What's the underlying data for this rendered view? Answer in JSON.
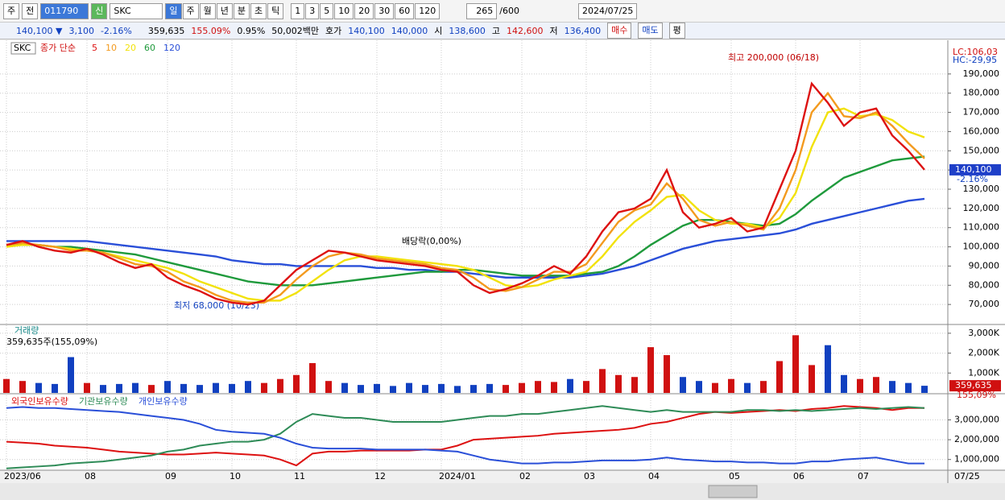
{
  "toolbar": {
    "market": "주",
    "prev": "전",
    "code": "011790",
    "name_badge": "신",
    "name": "SKC",
    "periods": [
      "일",
      "주",
      "월",
      "년",
      "분",
      "초",
      "틱"
    ],
    "intervals": [
      "1",
      "3",
      "5",
      "10",
      "20",
      "30",
      "60",
      "120"
    ],
    "count": "265",
    "count_max": "/600",
    "date": "2024/07/25"
  },
  "quote": {
    "price": "140,100 ▼",
    "change": "3,100",
    "change_pct": "-2.16%",
    "volume": "359,635",
    "volume_pct": "155.09%",
    "turnover": "0.95%",
    "amount": "50,002백만",
    "bid_label": "호가",
    "ask": "140,100",
    "bid": "140,000",
    "open_label": "시",
    "open": "138,600",
    "high_label": "고",
    "high": "142,600",
    "low_label": "저",
    "low": "136,400",
    "buy": "매수",
    "sell": "매도",
    "avg": "평"
  },
  "x_end_label": "07/25",
  "chart_data": [
    {
      "type": "line",
      "name": "SKC",
      "legend_title": "종가 단순",
      "categories": [
        "2023/06",
        null,
        null,
        null,
        null,
        "08",
        null,
        null,
        null,
        null,
        "09",
        null,
        null,
        null,
        "10",
        null,
        null,
        null,
        "11",
        null,
        null,
        null,
        null,
        "12",
        null,
        null,
        null,
        "2024/01",
        null,
        null,
        null,
        null,
        "02",
        null,
        null,
        null,
        "03",
        null,
        null,
        null,
        "04",
        null,
        null,
        null,
        null,
        "05",
        null,
        null,
        null,
        "06",
        null,
        null,
        null,
        "07",
        null,
        null,
        null,
        null
      ],
      "series": [
        {
          "name": "120",
          "color": "#2a4fd8",
          "values": [
            103000,
            103000,
            103000,
            103000,
            103000,
            103000,
            102000,
            101000,
            100000,
            99000,
            98000,
            97000,
            96000,
            95000,
            93000,
            92000,
            91000,
            91000,
            90000,
            90000,
            90000,
            90000,
            90000,
            89000,
            89000,
            88000,
            88000,
            87000,
            87000,
            86000,
            85000,
            84000,
            84000,
            84000,
            84000,
            84000,
            85000,
            86000,
            88000,
            90000,
            93000,
            96000,
            99000,
            101000,
            103000,
            104000,
            105000,
            106000,
            107000,
            109000,
            112000,
            114000,
            116000,
            118000,
            120000,
            122000,
            124000,
            125000
          ]
        },
        {
          "name": "60",
          "color": "#1f9a3c",
          "values": [
            101000,
            101000,
            101000,
            100000,
            100000,
            99000,
            98000,
            97000,
            96000,
            94000,
            92000,
            90000,
            88000,
            86000,
            84000,
            82000,
            81000,
            80000,
            80000,
            80000,
            81000,
            82000,
            83000,
            84000,
            85000,
            86000,
            87000,
            87000,
            88000,
            88000,
            87000,
            86000,
            85000,
            85000,
            85000,
            85000,
            86000,
            87000,
            90000,
            95000,
            101000,
            106000,
            111000,
            114000,
            114000,
            113000,
            112000,
            111000,
            112000,
            117000,
            124000,
            130000,
            136000,
            139000,
            142000,
            145000,
            146000,
            147000
          ]
        },
        {
          "name": "20",
          "color": "#f2e20a",
          "values": [
            100000,
            101000,
            101000,
            100000,
            99000,
            98000,
            97000,
            95000,
            93000,
            91000,
            89000,
            86000,
            82000,
            79000,
            76000,
            73000,
            72000,
            72000,
            76000,
            82000,
            88000,
            93000,
            95000,
            95000,
            94000,
            93000,
            92000,
            91000,
            90000,
            88000,
            84000,
            80000,
            79000,
            80000,
            83000,
            85000,
            87000,
            95000,
            105000,
            113000,
            119000,
            126000,
            127000,
            119000,
            114000,
            112000,
            112000,
            110000,
            115000,
            128000,
            152000,
            170000,
            172000,
            168000,
            169000,
            166000,
            160000,
            157000
          ]
        },
        {
          "name": "10",
          "color": "#f39a1e",
          "values": [
            101000,
            102000,
            101000,
            100000,
            98000,
            98000,
            97000,
            94000,
            91000,
            90000,
            87000,
            82000,
            79000,
            75000,
            72000,
            71000,
            71000,
            75000,
            83000,
            90000,
            95000,
            97000,
            96000,
            94000,
            93000,
            92000,
            91000,
            89000,
            88000,
            84000,
            78000,
            77000,
            79000,
            83000,
            87000,
            87000,
            91000,
            102000,
            113000,
            119000,
            122000,
            133000,
            125000,
            114000,
            111000,
            113000,
            111000,
            109000,
            120000,
            140000,
            170000,
            180000,
            168000,
            167000,
            170000,
            163000,
            154000,
            146000
          ]
        },
        {
          "name": "5",
          "color": "#dd1111",
          "values": [
            101000,
            103000,
            100000,
            98000,
            97000,
            99000,
            96000,
            92000,
            89000,
            91000,
            84000,
            80000,
            77000,
            73000,
            71000,
            70000,
            72000,
            80000,
            88000,
            93000,
            98000,
            97000,
            95000,
            93000,
            92000,
            91000,
            90000,
            88000,
            87000,
            80000,
            76000,
            78000,
            81000,
            85000,
            90000,
            86000,
            95000,
            108000,
            118000,
            120000,
            125000,
            140000,
            118000,
            110000,
            112000,
            115000,
            108000,
            110000,
            130000,
            150000,
            185000,
            175000,
            163000,
            170000,
            172000,
            158000,
            150000,
            140100
          ]
        }
      ],
      "ylim": [
        60000,
        200000
      ],
      "yticks": [
        {
          "value": 70000,
          "label": "70,000"
        },
        {
          "value": 80000,
          "label": "80,000"
        },
        {
          "value": 90000,
          "label": "90,000"
        },
        {
          "value": 100000,
          "label": "100,000"
        },
        {
          "value": 110000,
          "label": "110,000"
        },
        {
          "value": 120000,
          "label": "120,000"
        },
        {
          "value": 130000,
          "label": "130,000"
        },
        {
          "value": 140000,
          "label": "140,000"
        },
        {
          "value": 150000,
          "label": "150,000"
        },
        {
          "value": 160000,
          "label": "160,000"
        },
        {
          "value": 170000,
          "label": "170,000"
        },
        {
          "value": 180000,
          "label": "180,000"
        },
        {
          "value": 190000,
          "label": "190,000"
        }
      ],
      "grid": true,
      "high_annotation": "최고 200,000 (06/18)",
      "low_annotation": "최저 68,000 (10/23)",
      "event_annotation": "배당락(0,00%)",
      "lc": "LC:106,03",
      "hc": "HC:-29,95",
      "last_price": {
        "value": 140100,
        "label": "140,100"
      },
      "last_change": "-2.16%"
    },
    {
      "type": "bar",
      "title": "거래량",
      "subtitle": "359,635주(155,09%)",
      "values": [
        700000,
        600000,
        500000,
        450000,
        1800000,
        500000,
        400000,
        450000,
        500000,
        400000,
        600000,
        450000,
        400000,
        500000,
        450000,
        600000,
        500000,
        700000,
        900000,
        1500000,
        600000,
        500000,
        400000,
        450000,
        350000,
        500000,
        400000,
        450000,
        350000,
        400000,
        450000,
        400000,
        500000,
        600000,
        550000,
        700000,
        600000,
        1200000,
        900000,
        800000,
        2300000,
        1900000,
        800000,
        600000,
        500000,
        700000,
        500000,
        600000,
        1600000,
        2900000,
        1400000,
        2400000,
        900000,
        700000,
        800000,
        600000,
        500000,
        359635
      ],
      "up_color": "#d01010",
      "down_color": "#1040c0",
      "ylim": [
        0,
        3360000
      ],
      "yticks": [
        {
          "value": 1000000,
          "label": "1,000K"
        },
        {
          "value": 2000000,
          "label": "2,000K"
        },
        {
          "value": 3000000,
          "label": "3,000K"
        }
      ],
      "last": {
        "value": 359635,
        "label": "359,635"
      },
      "last_pct": "155,09%"
    },
    {
      "type": "line",
      "series": [
        {
          "name": "외국인보유수량",
          "color": "#dd1111",
          "values": [
            1900000,
            1850000,
            1800000,
            1700000,
            1650000,
            1600000,
            1500000,
            1400000,
            1350000,
            1300000,
            1250000,
            1250000,
            1300000,
            1350000,
            1300000,
            1250000,
            1200000,
            1000000,
            700000,
            1300000,
            1400000,
            1400000,
            1450000,
            1450000,
            1450000,
            1450000,
            1500000,
            1500000,
            1700000,
            2000000,
            2050000,
            2100000,
            2150000,
            2200000,
            2300000,
            2350000,
            2400000,
            2450000,
            2500000,
            2600000,
            2800000,
            2900000,
            3100000,
            3300000,
            3400000,
            3350000,
            3400000,
            3450000,
            3500000,
            3450000,
            3550000,
            3600000,
            3700000,
            3650000,
            3600000,
            3500000,
            3600000,
            3600000
          ]
        },
        {
          "name": "기관보유수량",
          "color": "#2e8b57",
          "values": [
            550000,
            600000,
            650000,
            700000,
            800000,
            850000,
            900000,
            1000000,
            1100000,
            1200000,
            1400000,
            1500000,
            1700000,
            1800000,
            1900000,
            1900000,
            2000000,
            2300000,
            2900000,
            3300000,
            3200000,
            3100000,
            3100000,
            3000000,
            2900000,
            2900000,
            2900000,
            2900000,
            3000000,
            3100000,
            3200000,
            3200000,
            3300000,
            3300000,
            3400000,
            3500000,
            3600000,
            3700000,
            3600000,
            3500000,
            3400000,
            3500000,
            3400000,
            3400000,
            3400000,
            3400000,
            3500000,
            3500000,
            3450000,
            3500000,
            3450000,
            3500000,
            3550000,
            3600000,
            3550000,
            3600000,
            3650000,
            3600000
          ]
        },
        {
          "name": "개인보유수량",
          "color": "#2a4fd8",
          "values": [
            3600000,
            3650000,
            3600000,
            3600000,
            3550000,
            3500000,
            3450000,
            3400000,
            3300000,
            3200000,
            3100000,
            3000000,
            2800000,
            2500000,
            2400000,
            2350000,
            2300000,
            2100000,
            1800000,
            1600000,
            1550000,
            1550000,
            1550000,
            1500000,
            1500000,
            1500000,
            1500000,
            1450000,
            1400000,
            1200000,
            1000000,
            900000,
            800000,
            800000,
            850000,
            850000,
            900000,
            950000,
            950000,
            950000,
            1000000,
            1100000,
            1000000,
            950000,
            900000,
            900000,
            850000,
            850000,
            800000,
            800000,
            900000,
            900000,
            1000000,
            1050000,
            1100000,
            950000,
            800000,
            800000
          ]
        }
      ],
      "ylim": [
        500000,
        4200000
      ],
      "yticks": [
        {
          "value": 1000000,
          "label": "1,000,000"
        },
        {
          "value": 2000000,
          "label": "2,000,000"
        },
        {
          "value": 3000000,
          "label": "3,000,000"
        }
      ]
    }
  ]
}
